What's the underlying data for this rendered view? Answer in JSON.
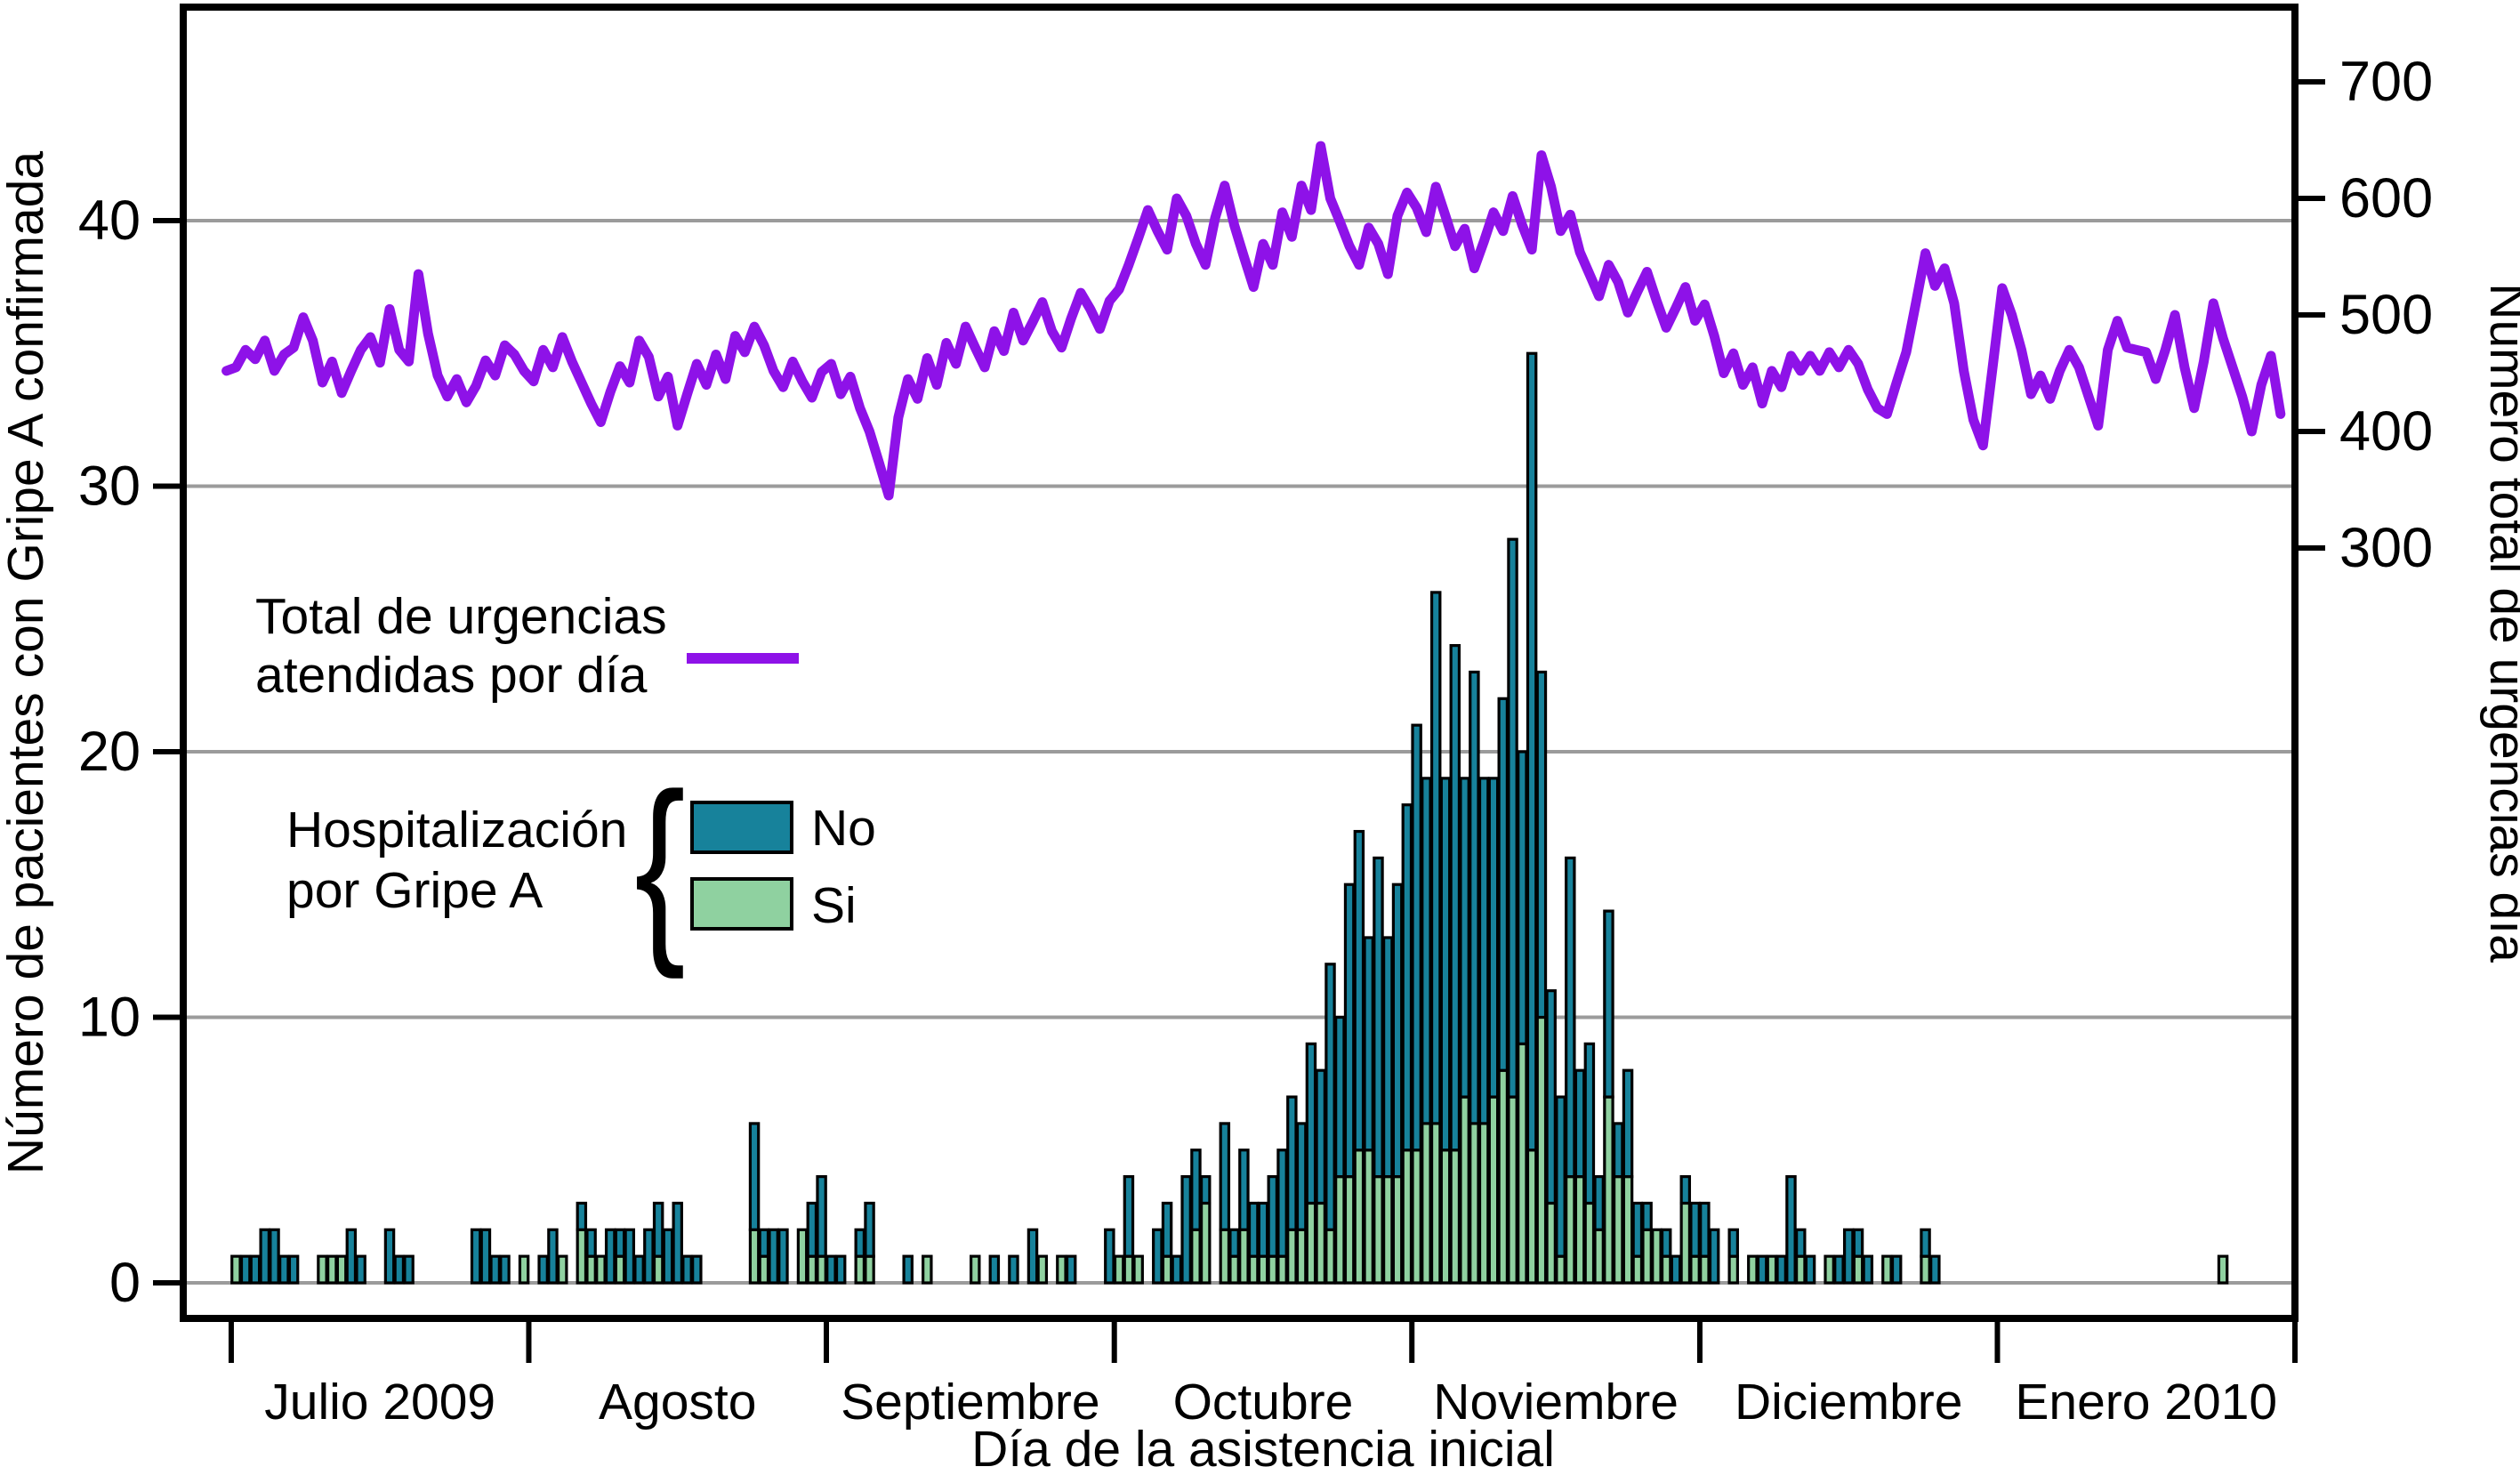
{
  "chart_data": {
    "type": "combo",
    "bar_mode": "stacked",
    "title": "",
    "x_label": "Día de la asistencia inicial",
    "y_left_label": "Número de pacientes con Gripe A confirmada",
    "y_right_label": "Número total de urgencias día",
    "y_left_ticks": [
      0,
      10,
      20,
      30,
      40
    ],
    "y_right_ticks": [
      300,
      400,
      500,
      600,
      700
    ],
    "y_left_plot_max": 48,
    "grid": true,
    "legend_position": "inside-left",
    "months": [
      {
        "label": "Julio 2009",
        "start": 5,
        "end": 36
      },
      {
        "label": "Agosto",
        "start": 36,
        "end": 67
      },
      {
        "label": "Septiembre",
        "start": 67,
        "end": 97
      },
      {
        "label": "Octubre",
        "start": 97,
        "end": 128
      },
      {
        "label": "Noviembre",
        "start": 128,
        "end": 158
      },
      {
        "label": "Diciembre",
        "start": 158,
        "end": 189
      },
      {
        "label": "Enero 2010",
        "start": 189,
        "end": 220
      }
    ],
    "legend": {
      "line_label_line1": "Total de urgencias",
      "line_label_line2": "atendidas por día",
      "hosp_label_line1": "Hospitalización",
      "hosp_label_line2": "por Gripe A",
      "no_label": "No",
      "si_label": "Si"
    },
    "colors": {
      "no": "#17829b",
      "si": "#8fd1a0",
      "line": "#8e12e8",
      "grid": "#9b9b9b",
      "axis": "#000000"
    },
    "series": [
      {
        "name": "Hospitalización por Gripe A: No",
        "type": "bar",
        "axis": "left",
        "values": [
          0,
          0,
          0,
          0,
          0,
          0,
          1,
          1,
          2,
          2,
          1,
          1,
          0,
          0,
          0,
          0,
          0,
          2,
          1,
          0,
          0,
          2,
          1,
          1,
          0,
          0,
          0,
          0,
          0,
          0,
          2,
          2,
          1,
          1,
          0,
          0,
          0,
          1,
          2,
          0,
          0,
          1,
          1,
          0,
          2,
          1,
          2,
          1,
          2,
          2,
          2,
          3,
          1,
          1,
          0,
          0,
          0,
          0,
          0,
          4,
          1,
          2,
          2,
          0,
          0,
          2,
          3,
          1,
          1,
          0,
          1,
          2,
          0,
          0,
          0,
          1,
          0,
          0,
          0,
          0,
          0,
          0,
          0,
          0,
          1,
          0,
          1,
          0,
          2,
          0,
          0,
          0,
          1,
          0,
          0,
          0,
          2,
          0,
          3,
          0,
          0,
          2,
          2,
          1,
          4,
          3,
          1,
          0,
          4,
          1,
          3,
          2,
          2,
          3,
          4,
          5,
          4,
          6,
          5,
          10,
          6,
          11,
          12,
          8,
          12,
          9,
          11,
          13,
          16,
          13,
          20,
          14,
          19,
          12,
          17,
          13,
          12,
          14,
          21,
          11,
          30,
          13,
          8,
          6,
          12,
          4,
          6,
          2,
          7,
          2,
          4,
          2,
          1,
          0,
          1,
          1,
          1,
          2,
          2,
          2,
          0,
          1,
          0,
          0,
          1,
          0,
          1,
          4,
          1,
          1,
          0,
          0,
          1,
          2,
          1,
          1,
          0,
          0,
          1,
          0,
          0,
          1,
          1,
          0,
          0,
          0,
          0,
          0,
          0,
          0,
          0,
          0,
          0,
          0,
          0,
          0,
          0,
          0,
          0,
          0,
          0,
          0,
          0,
          0,
          0,
          0,
          0,
          0,
          0,
          0,
          0,
          0,
          0,
          0,
          0,
          0,
          0,
          0,
          0,
          0
        ]
      },
      {
        "name": "Hospitalización por Gripe A: Si",
        "type": "bar",
        "axis": "left",
        "values": [
          0,
          0,
          0,
          0,
          0,
          1,
          0,
          0,
          0,
          0,
          0,
          0,
          0,
          0,
          1,
          1,
          1,
          0,
          0,
          0,
          0,
          0,
          0,
          0,
          0,
          0,
          0,
          0,
          0,
          0,
          0,
          0,
          0,
          0,
          0,
          1,
          0,
          0,
          0,
          1,
          0,
          2,
          1,
          1,
          0,
          1,
          0,
          0,
          0,
          1,
          0,
          0,
          0,
          0,
          0,
          0,
          0,
          0,
          0,
          2,
          1,
          0,
          0,
          0,
          2,
          1,
          1,
          0,
          0,
          0,
          1,
          1,
          0,
          0,
          0,
          0,
          0,
          1,
          0,
          0,
          0,
          0,
          1,
          0,
          0,
          0,
          0,
          0,
          0,
          1,
          0,
          1,
          0,
          0,
          0,
          0,
          0,
          1,
          1,
          1,
          0,
          0,
          1,
          0,
          0,
          2,
          3,
          0,
          2,
          1,
          2,
          1,
          1,
          1,
          1,
          2,
          2,
          3,
          3,
          2,
          4,
          4,
          5,
          5,
          4,
          4,
          4,
          5,
          5,
          6,
          6,
          5,
          5,
          7,
          6,
          6,
          7,
          8,
          7,
          9,
          5,
          10,
          3,
          1,
          4,
          4,
          3,
          2,
          7,
          4,
          4,
          1,
          2,
          2,
          1,
          0,
          3,
          1,
          1,
          0,
          0,
          1,
          0,
          1,
          0,
          1,
          0,
          0,
          1,
          0,
          0,
          1,
          0,
          0,
          1,
          0,
          0,
          1,
          0,
          0,
          0,
          1,
          0,
          0,
          0,
          0,
          0,
          0,
          0,
          0,
          0,
          0,
          0,
          0,
          0,
          0,
          0,
          0,
          0,
          0,
          0,
          0,
          0,
          0,
          0,
          0,
          0,
          0,
          0,
          0,
          0,
          0,
          1,
          0,
          0,
          0,
          0,
          0,
          0,
          0
        ]
      },
      {
        "name": "Total de urgencias atendidas por día",
        "type": "line",
        "axis": "right",
        "day_range": [
          4,
          218
        ],
        "values": [
          467,
          446,
          462,
          441,
          452,
          455,
          470,
          462,
          478,
          452,
          466,
          472,
          498,
          478,
          442,
          460,
          433,
          452,
          470,
          481,
          459,
          505,
          470,
          460,
          535,
          484,
          448,
          430,
          445,
          425,
          439,
          461,
          448,
          474,
          466,
          452,
          443,
          470,
          455,
          481,
          460,
          442,
          424,
          408,
          434,
          456,
          442,
          478,
          464,
          430,
          447,
          405,
          432,
          458,
          440,
          466,
          445,
          482,
          468,
          490,
          474,
          452,
          438,
          460,
          443,
          429,
          451,
          458,
          432,
          447,
          420,
          400,
          373,
          345,
          412,
          445,
          428,
          463,
          440,
          476,
          458,
          490,
          472,
          455,
          486,
          469,
          502,
          478,
          494,
          511,
          486,
          472,
          497,
          519,
          505,
          488,
          512,
          522,
          543,
          566,
          590,
          572,
          556,
          600,
          585,
          561,
          543,
          583,
          611,
          577,
          550,
          524,
          561,
          543,
          588,
          567,
          611,
          590,
          645,
          600,
          580,
          559,
          543,
          575,
          561,
          535,
          585,
          605,
          592,
          571,
          610,
          585,
          559,
          574,
          540,
          563,
          588,
          572,
          602,
          577,
          556,
          637,
          610,
          572,
          586,
          554,
          535,
          516,
          543,
          528,
          502,
          520,
          537,
          512,
          489,
          506,
          524,
          495,
          509,
          482,
          450,
          467,
          440,
          455,
          424,
          452,
          438,
          465,
          452,
          465,
          452,
          468,
          455,
          470,
          458,
          436,
          420,
          415,
          442,
          468,
          510,
          553,
          525,
          540,
          510,
          452,
          410,
          388,
          455,
          523,
          500,
          470,
          432,
          448,
          428,
          452,
          470,
          455,
          430,
          405,
          470,
          495,
          472,
          470,
          468,
          445,
          470,
          500,
          455,
          420,
          460,
          510,
          480,
          455,
          430,
          400,
          440,
          465,
          415,
          415
        ]
      }
    ]
  }
}
